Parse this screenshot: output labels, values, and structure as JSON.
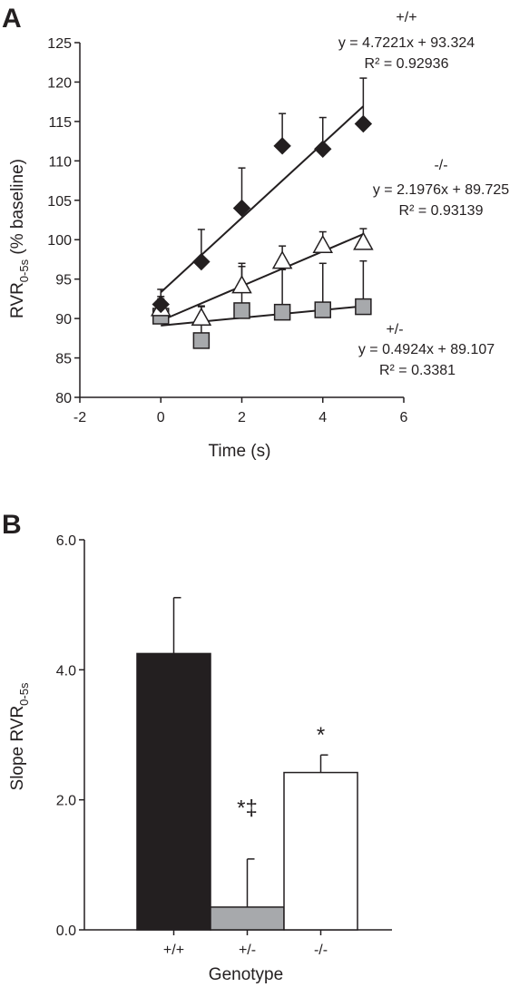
{
  "chart_data": [
    {
      "panel": "A",
      "type": "scatter",
      "xlabel": "Time (s)",
      "ylabel_main": "RVR",
      "ylabel_sub": "0-5s",
      "ylabel_suffix": " (% baseline)",
      "xlim": [
        -2,
        6
      ],
      "ylim": [
        80,
        125
      ],
      "x_ticks": [
        -2,
        0,
        2,
        4,
        6
      ],
      "y_ticks": [
        80,
        85,
        90,
        95,
        100,
        105,
        110,
        115,
        120,
        125
      ],
      "grid": false,
      "series": [
        {
          "name": "+/+",
          "marker": "diamond",
          "color": "#231f20",
          "x": [
            0,
            1,
            2,
            3,
            4,
            5
          ],
          "y": [
            91.8,
            97.2,
            104.0,
            111.9,
            111.5,
            114.7
          ],
          "error_plus": [
            1.9,
            4.1,
            5.1,
            4.1,
            4.0,
            5.8
          ],
          "fit": {
            "slope": 4.7221,
            "intercept": 93.324,
            "x_range": [
              0,
              5
            ]
          },
          "equation": "y = 4.7221x + 93.324",
          "r2": "R² = 0.92936"
        },
        {
          "name": "-/-",
          "marker": "triangle-open",
          "color": "#ffffff",
          "x": [
            0,
            1,
            2,
            3,
            4,
            5
          ],
          "y": [
            91.3,
            90.1,
            94.2,
            97.3,
            99.3,
            99.7
          ],
          "error_plus": [
            1.2,
            1.5,
            2.8,
            1.9,
            1.7,
            1.7
          ],
          "fit": {
            "slope": 2.1976,
            "intercept": 89.725,
            "x_range": [
              0,
              5
            ]
          },
          "equation": "y = 2.1976x + 89.725",
          "r2": "R² = 0.93139"
        },
        {
          "name": "+/-",
          "marker": "square",
          "color": "#a7a9ac",
          "x": [
            0,
            1,
            2,
            3,
            4,
            5
          ],
          "y": [
            90.3,
            87.2,
            91.0,
            90.8,
            91.1,
            91.5
          ],
          "error_plus": [
            2.5,
            4.3,
            5.6,
            5.4,
            5.9,
            5.8
          ],
          "fit": {
            "slope": 0.4924,
            "intercept": 89.107,
            "x_range": [
              0,
              5
            ]
          },
          "equation": "y = 0.4924x + 89.107",
          "r2": "R² = 0.3381"
        }
      ]
    },
    {
      "panel": "B",
      "type": "bar",
      "xlabel": "Genotype",
      "ylabel_main": "Slope  RVR",
      "ylabel_sub": "0-5s",
      "categories": [
        "+/+",
        "+/-",
        "-/-"
      ],
      "values": [
        4.25,
        0.35,
        2.42
      ],
      "error_plus": [
        0.86,
        0.74,
        0.27
      ],
      "colors": [
        "#231f20",
        "#a7a9ac",
        "#ffffff"
      ],
      "annotations": [
        "",
        "*‡",
        "*"
      ],
      "ylim": [
        0,
        6
      ],
      "y_ticks": [
        "0.0",
        "2.0",
        "4.0",
        "6.0"
      ],
      "grid": false
    }
  ]
}
